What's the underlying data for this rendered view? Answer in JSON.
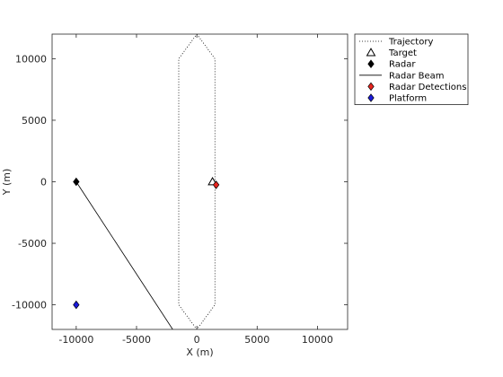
{
  "chart_data": {
    "type": "scatter",
    "title": "",
    "xlabel": "X (m)",
    "ylabel": "Y (m)",
    "xlim": [
      -12000,
      12500
    ],
    "ylim": [
      -12000,
      12000
    ],
    "xticks": [
      -10000,
      -5000,
      0,
      5000,
      10000
    ],
    "yticks": [
      -10000,
      -5000,
      0,
      5000,
      10000
    ],
    "xtick_labels": [
      "-10000",
      "-5000",
      "0",
      "5000",
      "10000"
    ],
    "ytick_labels": [
      "-10000",
      "-5000",
      "0",
      "5000",
      "10000"
    ],
    "legend_position": "outside-top-right",
    "series": [
      {
        "name": "Trajectory",
        "style": "dotted-line",
        "color": "#000000",
        "x": [
          0,
          1500,
          1500,
          0,
          -1500,
          -1500,
          0
        ],
        "y": [
          12000,
          10000,
          -10000,
          -12000,
          -10000,
          10000,
          12000
        ]
      },
      {
        "name": "Target",
        "marker": "triangle-open",
        "color": "#000000",
        "x": [
          1300
        ],
        "y": [
          0
        ]
      },
      {
        "name": "Radar",
        "marker": "diamond-filled",
        "color": "#000000",
        "x": [
          -10000
        ],
        "y": [
          0
        ]
      },
      {
        "name": "Radar Beam",
        "style": "solid-line",
        "color": "#000000",
        "x": [
          -10000,
          -2000
        ],
        "y": [
          0,
          -12000
        ]
      },
      {
        "name": "Radar Detections",
        "marker": "diamond-filled",
        "color": "#e8251f",
        "x": [
          1600
        ],
        "y": [
          -250
        ]
      },
      {
        "name": "Platform",
        "marker": "diamond-filled",
        "color": "#1a1adb",
        "x": [
          -10000
        ],
        "y": [
          -10000
        ]
      }
    ]
  }
}
